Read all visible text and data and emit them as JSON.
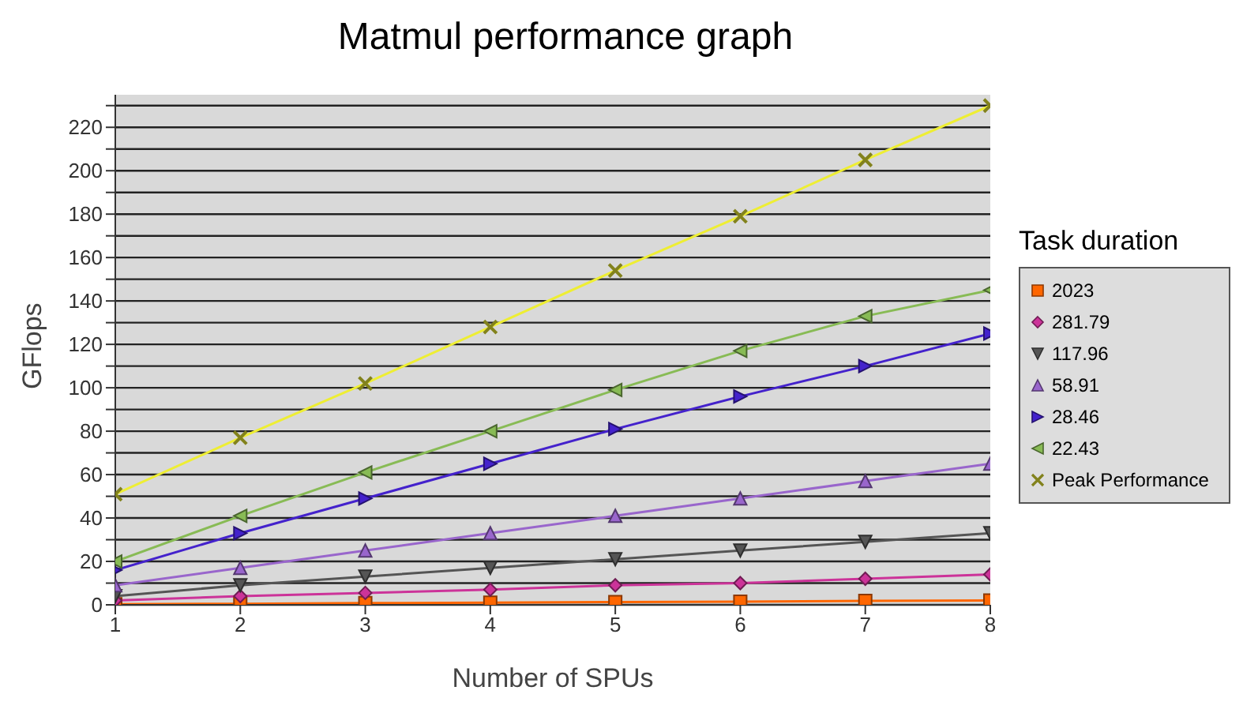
{
  "chart_data": {
    "type": "line",
    "title": "Matmul performance graph",
    "xlabel": "Number of SPUs",
    "ylabel": "GFlops",
    "legend_title": "Task duration",
    "legend": "right",
    "grid": "y",
    "x": [
      1,
      2,
      3,
      4,
      5,
      6,
      7,
      8
    ],
    "xlim": [
      1,
      8
    ],
    "xticks": [
      1,
      2,
      3,
      4,
      5,
      6,
      7,
      8
    ],
    "ylim": [
      0,
      235
    ],
    "yticks": [
      0,
      {
        "value": 10,
        "label": null
      },
      20,
      {
        "value": 30,
        "label": null
      },
      40,
      {
        "value": 50,
        "label": null
      },
      60,
      {
        "value": 70,
        "label": null
      },
      80,
      {
        "value": 90,
        "label": null
      },
      100,
      {
        "value": 110,
        "label": null
      },
      120,
      {
        "value": 130,
        "label": null
      },
      140,
      {
        "value": 150,
        "label": null
      },
      160,
      {
        "value": 170,
        "label": null
      },
      180,
      {
        "value": 190,
        "label": null
      },
      200,
      {
        "value": 210,
        "label": null
      },
      220,
      {
        "value": 230,
        "label": null
      }
    ],
    "series": [
      {
        "name": "2023",
        "color": "#ff6600",
        "marker": "square",
        "values": [
          0.3,
          0.5,
          0.8,
          1,
          1.3,
          1.5,
          1.8,
          2
        ]
      },
      {
        "name": "281.79",
        "color": "#cc3399",
        "marker": "diamond",
        "values": [
          2,
          4,
          5.5,
          7,
          9,
          10,
          12,
          14
        ]
      },
      {
        "name": "117.96",
        "color": "#555555",
        "marker": "triangle-down",
        "values": [
          4,
          9,
          13,
          17,
          21,
          25,
          29,
          33
        ]
      },
      {
        "name": "58.91",
        "color": "#9966cc",
        "marker": "triangle",
        "values": [
          9,
          17,
          25,
          33,
          41,
          49,
          57,
          65
        ]
      },
      {
        "name": "28.46",
        "color": "#4422cc",
        "marker": "triangle-right",
        "values": [
          16,
          33,
          49,
          65,
          81,
          96,
          110,
          125
        ]
      },
      {
        "name": "22.43",
        "color": "#88bb55",
        "marker": "triangle-left",
        "values": [
          20,
          41,
          61,
          80,
          99,
          117,
          133,
          145
        ]
      },
      {
        "name": "Peak Performance",
        "color": "#eeee33",
        "marker": "cross",
        "values": [
          51,
          77,
          102,
          128,
          154,
          179,
          205,
          230
        ]
      }
    ]
  }
}
